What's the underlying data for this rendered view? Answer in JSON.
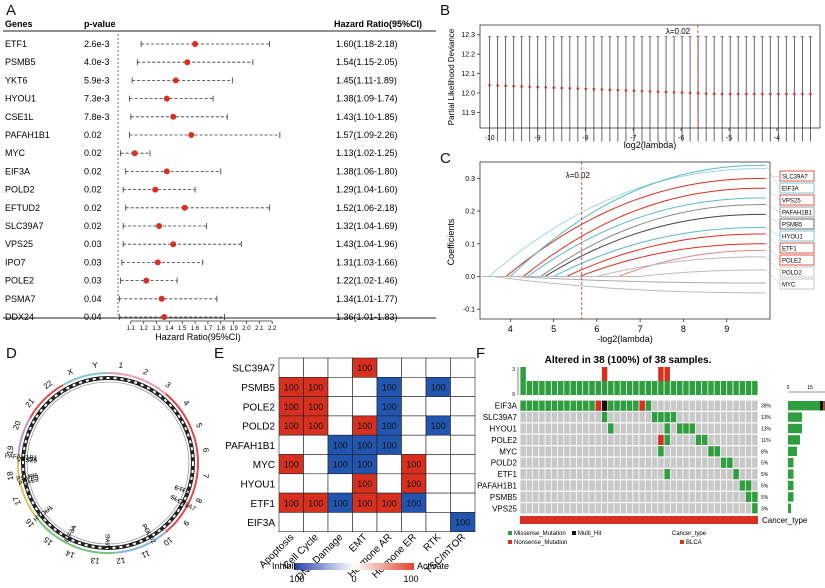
{
  "colors": {
    "red": "#d7301f",
    "blue": "#2255b0",
    "green": "#2e9e3e",
    "grey": "#c8c8c8",
    "cyan": "#5fb8c8",
    "darkred": "#8b1a1a"
  },
  "panels": {
    "a": "A",
    "b": "B",
    "c": "C",
    "d": "D",
    "e": "E",
    "f": "F"
  },
  "chart_data": [
    {
      "panel": "A",
      "type": "forest",
      "headers": {
        "genes": "Genes",
        "pvalue": "p-value",
        "hr": "Hazard Ratio(95%CI)"
      },
      "xlabel": "Hazard Ratio(95%CI)",
      "xticks": [
        "1.1",
        "1.2",
        "1.3",
        "1.4",
        "1.5",
        "1.6",
        "1.7",
        "1.8",
        "1.9",
        "2.0",
        "2.1",
        "2.2"
      ],
      "xlim": [
        1.0,
        2.3
      ],
      "rows": [
        {
          "gene": "ETF1",
          "p": "2.6e-3",
          "hr": 1.6,
          "lo": 1.18,
          "hi": 2.18,
          "label": "1.60(1.18-2.18)"
        },
        {
          "gene": "PSMB5",
          "p": "4.0e-3",
          "hr": 1.54,
          "lo": 1.15,
          "hi": 2.05,
          "label": "1.54(1.15-2.05)"
        },
        {
          "gene": "YKT6",
          "p": "5.9e-3",
          "hr": 1.45,
          "lo": 1.11,
          "hi": 1.89,
          "label": "1.45(1.11-1.89)"
        },
        {
          "gene": "HYOU1",
          "p": "7.3e-3",
          "hr": 1.38,
          "lo": 1.09,
          "hi": 1.74,
          "label": "1.38(1.09-1.74)"
        },
        {
          "gene": "CSE1L",
          "p": "7.8e-3",
          "hr": 1.43,
          "lo": 1.1,
          "hi": 1.85,
          "label": "1.43(1.10-1.85)"
        },
        {
          "gene": "PAFAH1B1",
          "p": "0.02",
          "hr": 1.57,
          "lo": 1.09,
          "hi": 2.26,
          "label": "1.57(1.09-2.26)"
        },
        {
          "gene": "MYC",
          "p": "0.02",
          "hr": 1.13,
          "lo": 1.02,
          "hi": 1.25,
          "label": "1.13(1.02-1.25)"
        },
        {
          "gene": "EIF3A",
          "p": "0.02",
          "hr": 1.38,
          "lo": 1.06,
          "hi": 1.8,
          "label": "1.38(1.06-1.80)"
        },
        {
          "gene": "POLD2",
          "p": "0.02",
          "hr": 1.29,
          "lo": 1.04,
          "hi": 1.6,
          "label": "1.29(1.04-1.60)"
        },
        {
          "gene": "EFTUD2",
          "p": "0.02",
          "hr": 1.52,
          "lo": 1.06,
          "hi": 2.18,
          "label": "1.52(1.06-2.18)"
        },
        {
          "gene": "SLC39A7",
          "p": "0.02",
          "hr": 1.32,
          "lo": 1.04,
          "hi": 1.69,
          "label": "1.32(1.04-1.69)"
        },
        {
          "gene": "VPS25",
          "p": "0.03",
          "hr": 1.43,
          "lo": 1.04,
          "hi": 1.96,
          "label": "1.43(1.04-1.96)"
        },
        {
          "gene": "IPO7",
          "p": "0.03",
          "hr": 1.31,
          "lo": 1.03,
          "hi": 1.66,
          "label": "1.31(1.03-1.66)"
        },
        {
          "gene": "POLE2",
          "p": "0.03",
          "hr": 1.22,
          "lo": 1.02,
          "hi": 1.46,
          "label": "1.22(1.02-1.46)"
        },
        {
          "gene": "PSMA7",
          "p": "0.04",
          "hr": 1.34,
          "lo": 1.01,
          "hi": 1.77,
          "label": "1.34(1.01-1.77)"
        },
        {
          "gene": "DDX24",
          "p": "0.04",
          "hr": 1.36,
          "lo": 1.01,
          "hi": 1.83,
          "label": "1.36(1.01-1.83)"
        }
      ]
    },
    {
      "panel": "B",
      "type": "line",
      "xlabel": "log2(lambda)",
      "ylabel": "Partial Likelihood Deviance",
      "xticks": [
        "-10",
        "-9",
        "-8",
        "-7",
        "-6",
        "-5",
        "-4"
      ],
      "yticks": [
        "11.9",
        "12.0",
        "12.1",
        "12.2",
        "12.3"
      ],
      "xlim": [
        -10.2,
        -3.1
      ],
      "ylim": [
        11.82,
        12.35
      ],
      "lambda_label": "λ=0.02",
      "lambda_x": -5.65,
      "n_points": 41,
      "mean_start": 12.04,
      "mean_min": 11.995,
      "upper": 12.29,
      "lower": 11.75
    },
    {
      "panel": "C",
      "type": "line",
      "xlabel": "-log2(lambda)",
      "ylabel": "Coefficients",
      "xticks": [
        "4",
        "5",
        "6",
        "7",
        "8",
        "9"
      ],
      "yticks": [
        "-0.1",
        "0.0",
        "0.1",
        "0.2",
        "0.3"
      ],
      "xlim": [
        3.3,
        10.0
      ],
      "ylim": [
        -0.13,
        0.35
      ],
      "lambda_label": "λ=0.02",
      "lambda_x": 5.65,
      "series": [
        {
          "name": "SLC39A7",
          "color": "#d7301f",
          "start": 3.9,
          "end": 0.3
        },
        {
          "name": "EIF3A",
          "color": "#5fb8c8",
          "start": 4.0,
          "end": 0.34
        },
        {
          "name": "VPS25",
          "color": "#d7301f",
          "start": 4.3,
          "end": 0.27
        },
        {
          "name": "PAFAH1B1",
          "color": "#888888",
          "start": 4.7,
          "end": 0.22
        },
        {
          "name": "PSMB5",
          "color": "#444444",
          "start": 4.8,
          "end": 0.19
        },
        {
          "name": "HYOU1",
          "color": "#5fb8c8",
          "start": 5.0,
          "end": 0.15
        },
        {
          "name": "ETF1",
          "color": "#d7301f",
          "start": 5.3,
          "end": 0.13
        },
        {
          "name": "POLE2",
          "color": "#d7301f",
          "start": 5.6,
          "end": 0.1
        },
        {
          "name": "POLD2",
          "color": "#bbbbbb",
          "start": 6.0,
          "end": 0.06
        },
        {
          "name": "MYC",
          "color": "#bbbbbb",
          "start": 7.0,
          "end": 0.02
        }
      ]
    },
    {
      "panel": "D",
      "type": "circos",
      "chromosomes": [
        "1",
        "2",
        "3",
        "4",
        "5",
        "6",
        "7",
        "8",
        "9",
        "10",
        "11",
        "12",
        "13",
        "14",
        "15",
        "16",
        "17",
        "18",
        "19",
        "20",
        "21",
        "22",
        "X",
        "Y"
      ],
      "genes": [
        {
          "name": "VPS25",
          "chrom": "17"
        },
        {
          "name": "PAFAH1B1",
          "chrom": "17"
        },
        {
          "name": "POLE2",
          "chrom": "14"
        },
        {
          "name": "PSMB5",
          "chrom": "14"
        },
        {
          "name": "HYOU1",
          "chrom": "11"
        },
        {
          "name": "EIF3A",
          "chrom": "10"
        },
        {
          "name": "MYC",
          "chrom": "8"
        },
        {
          "name": "POLD2",
          "chrom": "7"
        },
        {
          "name": "SLC39A7",
          "chrom": "6"
        },
        {
          "name": "ETF1",
          "chrom": "5"
        }
      ]
    },
    {
      "panel": "E",
      "type": "heatmap",
      "rows": [
        "SLC39A7",
        "PSMB5",
        "POLE2",
        "POLD2",
        "PAFAH1B1",
        "MYC",
        "HYOU1",
        "ETF1",
        "EIF3A"
      ],
      "cols": [
        "Apoptosis",
        "Cell Cycle",
        "DNA Damage",
        "EMT",
        "Hormone AR",
        "Hormone ER",
        "RTK",
        "TSC/mTOR"
      ],
      "values": [
        [
          0,
          0,
          0,
          100,
          0,
          0,
          0,
          0
        ],
        [
          100,
          100,
          0,
          0,
          -100,
          0,
          -100,
          0
        ],
        [
          100,
          100,
          0,
          0,
          -100,
          0,
          0,
          0
        ],
        [
          100,
          100,
          0,
          100,
          -100,
          0,
          -100,
          0
        ],
        [
          0,
          0,
          -100,
          -100,
          -100,
          0,
          0,
          0
        ],
        [
          100,
          0,
          -100,
          -100,
          0,
          100,
          0,
          0
        ],
        [
          0,
          0,
          0,
          100,
          0,
          100,
          0,
          0
        ],
        [
          100,
          100,
          -100,
          100,
          100,
          -100,
          0,
          0
        ],
        [
          0,
          0,
          0,
          0,
          0,
          0,
          0,
          -100
        ]
      ],
      "cell_label": "100",
      "legend": {
        "inhibit": "Inhibit",
        "activate": "Activate",
        "ticks": [
          "100",
          "0",
          "100"
        ]
      }
    },
    {
      "panel": "F",
      "type": "oncoprint",
      "title": "Altered in 38 (100%) of 38 samples.",
      "top_axis": [
        "3",
        "0"
      ],
      "genes": [
        {
          "name": "EIF3A",
          "pct": "39%"
        },
        {
          "name": "SLC39A7",
          "pct": "13%"
        },
        {
          "name": "HYOU1",
          "pct": "13%"
        },
        {
          "name": "POLE2",
          "pct": "11%"
        },
        {
          "name": "MYC",
          "pct": "8%"
        },
        {
          "name": "POLD2",
          "pct": "5%"
        },
        {
          "name": "ETF1",
          "pct": "5%"
        },
        {
          "name": "PAFAH1B1",
          "pct": "5%"
        },
        {
          "name": "PSMB5",
          "pct": "5%"
        },
        {
          "name": "VPS25",
          "pct": "3%"
        }
      ],
      "right_axis": [
        "0",
        "15"
      ],
      "cancer_type_label": "Cancer_type",
      "legend": {
        "missense": "Missense_Mutation",
        "multi": "Multi_Hit",
        "nonsense": "Nonsense_Mutation",
        "cancer_type": "Cancer_type",
        "blca": "BLCA"
      }
    }
  ]
}
